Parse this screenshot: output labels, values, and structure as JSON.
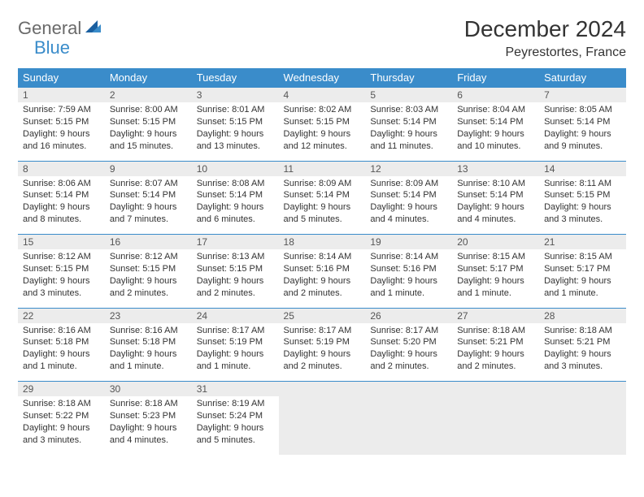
{
  "logo": {
    "word1": "General",
    "word2": "Blue"
  },
  "title": "December 2024",
  "location": "Peyrestortes, France",
  "colors": {
    "headerBg": "#3a8cca",
    "headerText": "#ffffff",
    "dayNumBg": "#ececec",
    "dayNumText": "#555555",
    "cellText": "#333333",
    "logoGray": "#6a6a6a",
    "logoBlue": "#3a8cca"
  },
  "weekDays": [
    "Sunday",
    "Monday",
    "Tuesday",
    "Wednesday",
    "Thursday",
    "Friday",
    "Saturday"
  ],
  "weeks": [
    [
      {
        "day": "1",
        "sunrise": "7:59 AM",
        "sunset": "5:15 PM",
        "daylight": "9 hours and 16 minutes."
      },
      {
        "day": "2",
        "sunrise": "8:00 AM",
        "sunset": "5:15 PM",
        "daylight": "9 hours and 15 minutes."
      },
      {
        "day": "3",
        "sunrise": "8:01 AM",
        "sunset": "5:15 PM",
        "daylight": "9 hours and 13 minutes."
      },
      {
        "day": "4",
        "sunrise": "8:02 AM",
        "sunset": "5:15 PM",
        "daylight": "9 hours and 12 minutes."
      },
      {
        "day": "5",
        "sunrise": "8:03 AM",
        "sunset": "5:14 PM",
        "daylight": "9 hours and 11 minutes."
      },
      {
        "day": "6",
        "sunrise": "8:04 AM",
        "sunset": "5:14 PM",
        "daylight": "9 hours and 10 minutes."
      },
      {
        "day": "7",
        "sunrise": "8:05 AM",
        "sunset": "5:14 PM",
        "daylight": "9 hours and 9 minutes."
      }
    ],
    [
      {
        "day": "8",
        "sunrise": "8:06 AM",
        "sunset": "5:14 PM",
        "daylight": "9 hours and 8 minutes."
      },
      {
        "day": "9",
        "sunrise": "8:07 AM",
        "sunset": "5:14 PM",
        "daylight": "9 hours and 7 minutes."
      },
      {
        "day": "10",
        "sunrise": "8:08 AM",
        "sunset": "5:14 PM",
        "daylight": "9 hours and 6 minutes."
      },
      {
        "day": "11",
        "sunrise": "8:09 AM",
        "sunset": "5:14 PM",
        "daylight": "9 hours and 5 minutes."
      },
      {
        "day": "12",
        "sunrise": "8:09 AM",
        "sunset": "5:14 PM",
        "daylight": "9 hours and 4 minutes."
      },
      {
        "day": "13",
        "sunrise": "8:10 AM",
        "sunset": "5:14 PM",
        "daylight": "9 hours and 4 minutes."
      },
      {
        "day": "14",
        "sunrise": "8:11 AM",
        "sunset": "5:15 PM",
        "daylight": "9 hours and 3 minutes."
      }
    ],
    [
      {
        "day": "15",
        "sunrise": "8:12 AM",
        "sunset": "5:15 PM",
        "daylight": "9 hours and 3 minutes."
      },
      {
        "day": "16",
        "sunrise": "8:12 AM",
        "sunset": "5:15 PM",
        "daylight": "9 hours and 2 minutes."
      },
      {
        "day": "17",
        "sunrise": "8:13 AM",
        "sunset": "5:15 PM",
        "daylight": "9 hours and 2 minutes."
      },
      {
        "day": "18",
        "sunrise": "8:14 AM",
        "sunset": "5:16 PM",
        "daylight": "9 hours and 2 minutes."
      },
      {
        "day": "19",
        "sunrise": "8:14 AM",
        "sunset": "5:16 PM",
        "daylight": "9 hours and 1 minute."
      },
      {
        "day": "20",
        "sunrise": "8:15 AM",
        "sunset": "5:17 PM",
        "daylight": "9 hours and 1 minute."
      },
      {
        "day": "21",
        "sunrise": "8:15 AM",
        "sunset": "5:17 PM",
        "daylight": "9 hours and 1 minute."
      }
    ],
    [
      {
        "day": "22",
        "sunrise": "8:16 AM",
        "sunset": "5:18 PM",
        "daylight": "9 hours and 1 minute."
      },
      {
        "day": "23",
        "sunrise": "8:16 AM",
        "sunset": "5:18 PM",
        "daylight": "9 hours and 1 minute."
      },
      {
        "day": "24",
        "sunrise": "8:17 AM",
        "sunset": "5:19 PM",
        "daylight": "9 hours and 1 minute."
      },
      {
        "day": "25",
        "sunrise": "8:17 AM",
        "sunset": "5:19 PM",
        "daylight": "9 hours and 2 minutes."
      },
      {
        "day": "26",
        "sunrise": "8:17 AM",
        "sunset": "5:20 PM",
        "daylight": "9 hours and 2 minutes."
      },
      {
        "day": "27",
        "sunrise": "8:18 AM",
        "sunset": "5:21 PM",
        "daylight": "9 hours and 2 minutes."
      },
      {
        "day": "28",
        "sunrise": "8:18 AM",
        "sunset": "5:21 PM",
        "daylight": "9 hours and 3 minutes."
      }
    ],
    [
      {
        "day": "29",
        "sunrise": "8:18 AM",
        "sunset": "5:22 PM",
        "daylight": "9 hours and 3 minutes."
      },
      {
        "day": "30",
        "sunrise": "8:18 AM",
        "sunset": "5:23 PM",
        "daylight": "9 hours and 4 minutes."
      },
      {
        "day": "31",
        "sunrise": "8:19 AM",
        "sunset": "5:24 PM",
        "daylight": "9 hours and 5 minutes."
      },
      null,
      null,
      null,
      null
    ]
  ],
  "labels": {
    "sunrise": "Sunrise:",
    "sunset": "Sunset:",
    "daylight": "Daylight:"
  }
}
